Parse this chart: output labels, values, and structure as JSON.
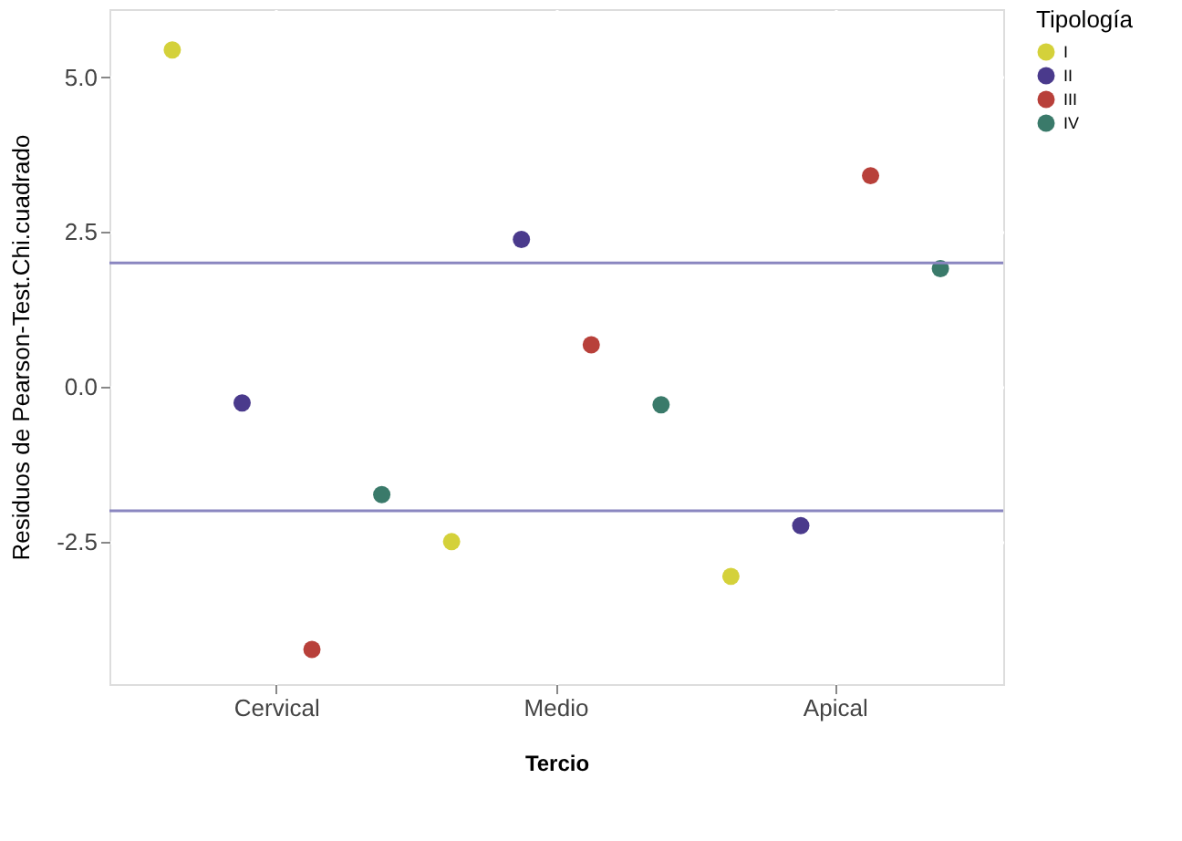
{
  "chart_data": {
    "type": "scatter",
    "xlabel": "Tercio",
    "ylabel": "Residuos de Pearson-Test.Chi.cuadrado",
    "legend_title": "Tipología",
    "categories": [
      "Cervical",
      "Medio",
      "Apical"
    ],
    "ylim": [
      -4.8,
      6.1
    ],
    "yticks": [
      {
        "value": -2.5,
        "label": "-2.5"
      },
      {
        "value": 0,
        "label": "0.0"
      },
      {
        "value": 2.5,
        "label": "2.5"
      },
      {
        "value": 5,
        "label": "5.0"
      }
    ],
    "series": [
      {
        "name": "I",
        "color": "#d4d13a",
        "values": [
          5.44,
          -2.5,
          -3.06
        ]
      },
      {
        "name": "II",
        "color": "#4a3a8c",
        "values": [
          -0.26,
          2.38,
          -2.24
        ]
      },
      {
        "name": "III",
        "color": "#b8403a",
        "values": [
          -4.24,
          0.68,
          3.41
        ]
      },
      {
        "name": "IV",
        "color": "#3a7a6a",
        "values": [
          -1.74,
          -0.29,
          1.91
        ]
      }
    ],
    "ref_lines": [
      {
        "axis": "y",
        "value": 2.0,
        "color": "#8a86c0"
      },
      {
        "axis": "y",
        "value": -2.0,
        "color": "#8a86c0"
      }
    ],
    "grid": true,
    "legend": "right",
    "marker": "circle"
  }
}
